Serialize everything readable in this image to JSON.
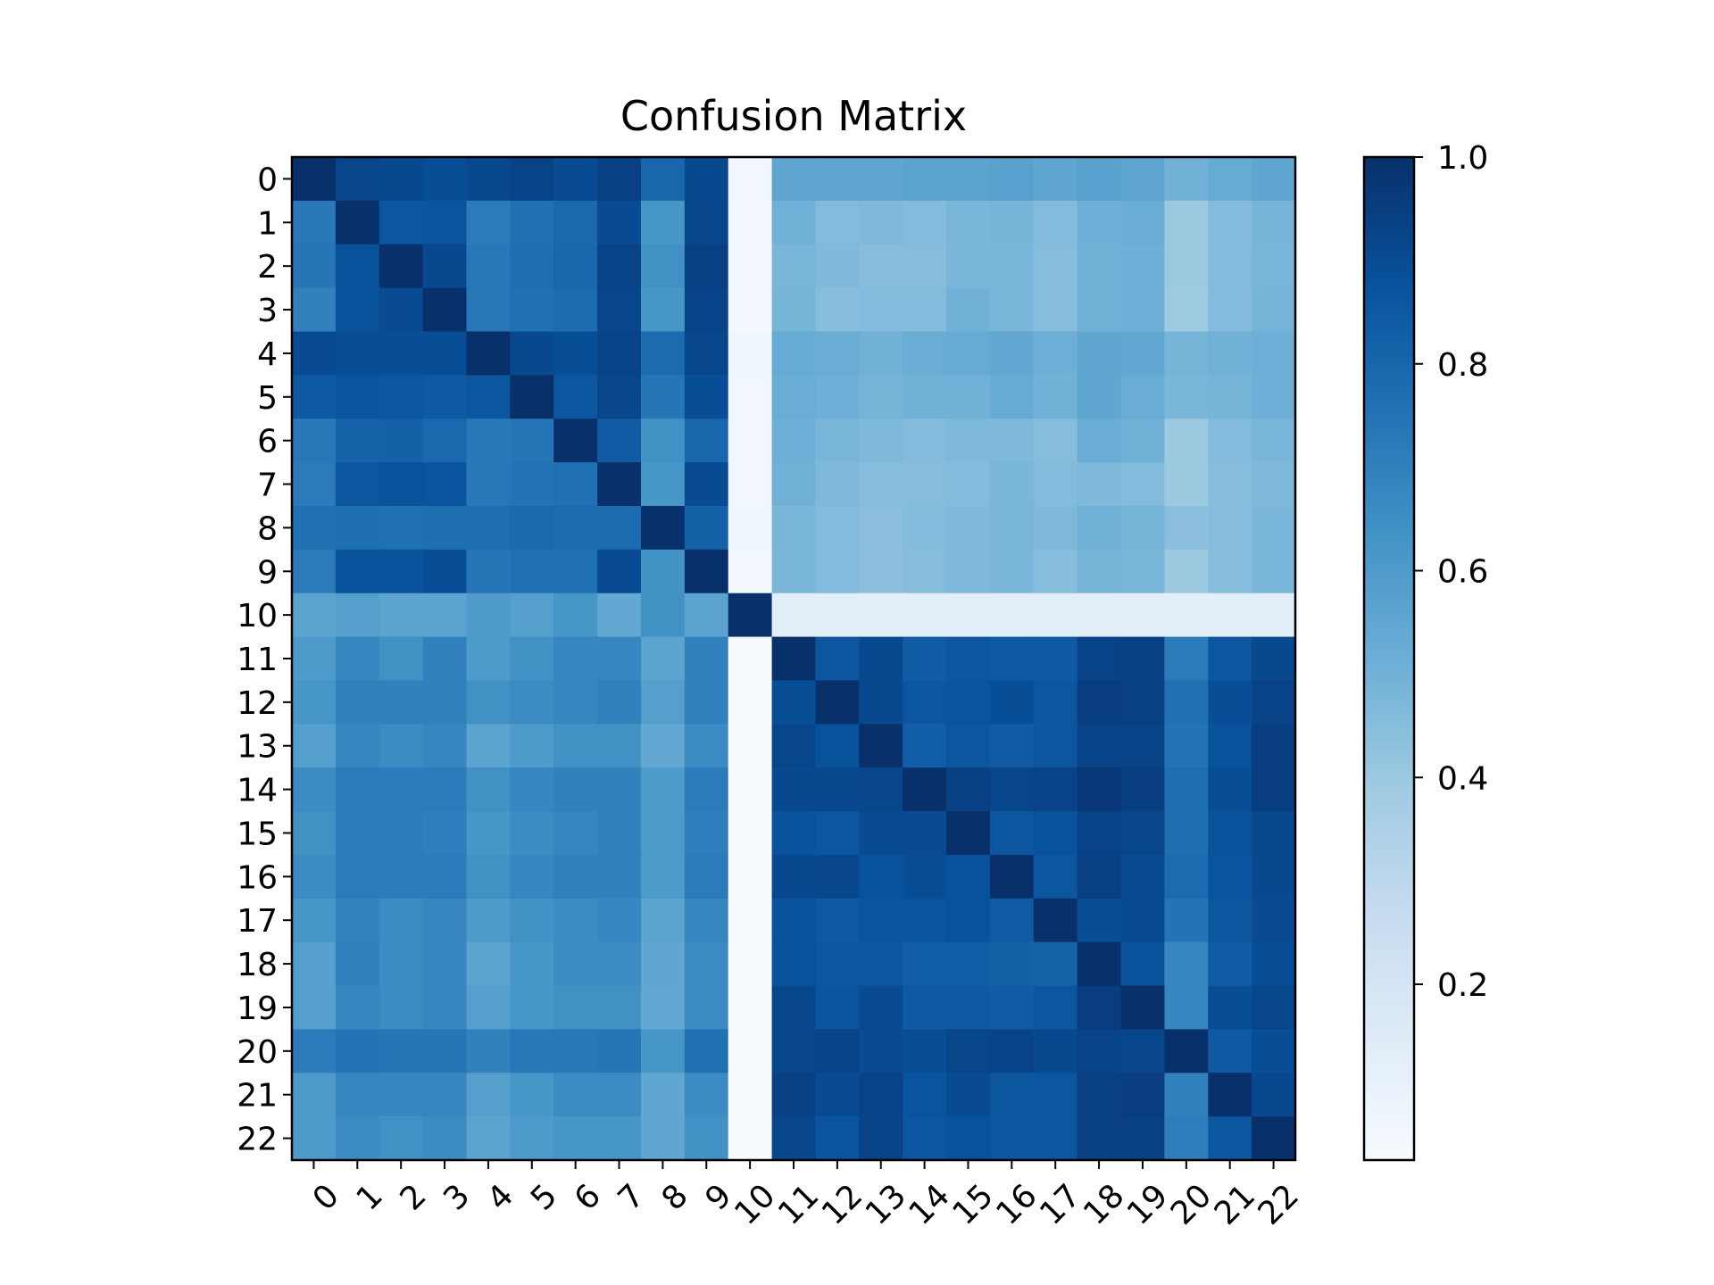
{
  "chart_data": {
    "type": "heatmap",
    "title": "Confusion Matrix",
    "colormap": "Blues",
    "xlabel": "",
    "ylabel": "",
    "x_tick_labels": [
      "0",
      "1",
      "2",
      "3",
      "4",
      "5",
      "6",
      "7",
      "8",
      "9",
      "10",
      "11",
      "12",
      "13",
      "14",
      "15",
      "16",
      "17",
      "18",
      "19",
      "20",
      "21",
      "22"
    ],
    "y_tick_labels": [
      "0",
      "1",
      "2",
      "3",
      "4",
      "5",
      "6",
      "7",
      "8",
      "9",
      "10",
      "11",
      "12",
      "13",
      "14",
      "15",
      "16",
      "17",
      "18",
      "19",
      "20",
      "21",
      "22"
    ],
    "colorbar": {
      "range": [
        0.03,
        1.0
      ],
      "ticks": [
        0.2,
        0.4,
        0.6,
        0.8,
        1.0
      ],
      "tick_labels": [
        "0.2",
        "0.4",
        "0.6",
        "0.8",
        "1.0"
      ]
    },
    "matrix": [
      [
        1.0,
        0.92,
        0.91,
        0.89,
        0.91,
        0.93,
        0.9,
        0.94,
        0.8,
        0.91,
        0.06,
        0.55,
        0.55,
        0.55,
        0.56,
        0.56,
        0.57,
        0.55,
        0.57,
        0.55,
        0.5,
        0.53,
        0.55
      ],
      [
        0.73,
        1.0,
        0.86,
        0.87,
        0.72,
        0.76,
        0.79,
        0.9,
        0.62,
        0.92,
        0.05,
        0.5,
        0.46,
        0.47,
        0.46,
        0.48,
        0.49,
        0.46,
        0.51,
        0.52,
        0.4,
        0.46,
        0.49
      ],
      [
        0.74,
        0.88,
        1.0,
        0.91,
        0.73,
        0.77,
        0.8,
        0.93,
        0.64,
        0.94,
        0.05,
        0.48,
        0.47,
        0.45,
        0.45,
        0.48,
        0.48,
        0.45,
        0.5,
        0.51,
        0.4,
        0.46,
        0.48
      ],
      [
        0.7,
        0.88,
        0.9,
        1.0,
        0.73,
        0.76,
        0.78,
        0.92,
        0.62,
        0.93,
        0.05,
        0.49,
        0.45,
        0.46,
        0.46,
        0.5,
        0.48,
        0.45,
        0.5,
        0.51,
        0.39,
        0.46,
        0.49
      ],
      [
        0.9,
        0.89,
        0.89,
        0.89,
        1.0,
        0.91,
        0.89,
        0.93,
        0.78,
        0.92,
        0.07,
        0.53,
        0.52,
        0.5,
        0.52,
        0.53,
        0.54,
        0.51,
        0.55,
        0.54,
        0.49,
        0.5,
        0.51
      ],
      [
        0.85,
        0.87,
        0.86,
        0.85,
        0.86,
        1.0,
        0.86,
        0.92,
        0.74,
        0.89,
        0.06,
        0.52,
        0.51,
        0.49,
        0.5,
        0.5,
        0.53,
        0.5,
        0.55,
        0.52,
        0.48,
        0.49,
        0.51
      ],
      [
        0.73,
        0.81,
        0.82,
        0.79,
        0.73,
        0.74,
        1.0,
        0.84,
        0.64,
        0.8,
        0.06,
        0.51,
        0.48,
        0.47,
        0.46,
        0.47,
        0.47,
        0.45,
        0.52,
        0.5,
        0.4,
        0.46,
        0.48
      ],
      [
        0.72,
        0.86,
        0.88,
        0.87,
        0.73,
        0.75,
        0.76,
        1.0,
        0.62,
        0.9,
        0.06,
        0.5,
        0.47,
        0.45,
        0.45,
        0.46,
        0.48,
        0.46,
        0.47,
        0.46,
        0.4,
        0.45,
        0.47
      ],
      [
        0.76,
        0.77,
        0.76,
        0.77,
        0.77,
        0.79,
        0.78,
        0.78,
        1.0,
        0.82,
        0.07,
        0.48,
        0.46,
        0.44,
        0.46,
        0.47,
        0.48,
        0.47,
        0.5,
        0.49,
        0.44,
        0.45,
        0.48
      ],
      [
        0.72,
        0.88,
        0.88,
        0.89,
        0.74,
        0.76,
        0.76,
        0.9,
        0.63,
        1.0,
        0.05,
        0.48,
        0.46,
        0.44,
        0.45,
        0.47,
        0.48,
        0.45,
        0.49,
        0.48,
        0.4,
        0.45,
        0.48
      ],
      [
        0.56,
        0.58,
        0.56,
        0.56,
        0.6,
        0.58,
        0.62,
        0.54,
        0.64,
        0.56,
        1.0,
        0.13,
        0.13,
        0.13,
        0.13,
        0.13,
        0.13,
        0.13,
        0.13,
        0.13,
        0.13,
        0.13,
        0.13
      ],
      [
        0.6,
        0.68,
        0.64,
        0.7,
        0.6,
        0.64,
        0.68,
        0.68,
        0.56,
        0.7,
        0.02,
        1.0,
        0.86,
        0.91,
        0.84,
        0.86,
        0.85,
        0.85,
        0.93,
        0.94,
        0.72,
        0.86,
        0.91
      ],
      [
        0.62,
        0.7,
        0.7,
        0.7,
        0.64,
        0.66,
        0.68,
        0.7,
        0.58,
        0.7,
        0.02,
        0.89,
        1.0,
        0.91,
        0.86,
        0.87,
        0.89,
        0.86,
        0.95,
        0.94,
        0.76,
        0.89,
        0.93
      ],
      [
        0.58,
        0.68,
        0.66,
        0.68,
        0.56,
        0.6,
        0.64,
        0.64,
        0.54,
        0.66,
        0.02,
        0.92,
        0.88,
        1.0,
        0.83,
        0.86,
        0.84,
        0.86,
        0.93,
        0.93,
        0.75,
        0.88,
        0.95
      ],
      [
        0.66,
        0.72,
        0.72,
        0.72,
        0.64,
        0.68,
        0.7,
        0.7,
        0.6,
        0.72,
        0.02,
        0.91,
        0.91,
        0.92,
        1.0,
        0.94,
        0.92,
        0.93,
        0.97,
        0.95,
        0.77,
        0.89,
        0.95
      ],
      [
        0.64,
        0.72,
        0.72,
        0.71,
        0.62,
        0.66,
        0.68,
        0.7,
        0.6,
        0.71,
        0.02,
        0.88,
        0.86,
        0.9,
        0.9,
        1.0,
        0.86,
        0.88,
        0.93,
        0.92,
        0.77,
        0.88,
        0.91
      ],
      [
        0.66,
        0.72,
        0.72,
        0.72,
        0.64,
        0.68,
        0.7,
        0.7,
        0.6,
        0.72,
        0.02,
        0.91,
        0.92,
        0.88,
        0.89,
        0.88,
        1.0,
        0.86,
        0.94,
        0.9,
        0.78,
        0.87,
        0.91
      ],
      [
        0.62,
        0.69,
        0.66,
        0.68,
        0.6,
        0.64,
        0.66,
        0.68,
        0.56,
        0.68,
        0.02,
        0.88,
        0.85,
        0.87,
        0.87,
        0.88,
        0.84,
        1.0,
        0.89,
        0.9,
        0.75,
        0.86,
        0.9
      ],
      [
        0.58,
        0.7,
        0.66,
        0.68,
        0.56,
        0.62,
        0.66,
        0.66,
        0.55,
        0.66,
        0.02,
        0.88,
        0.86,
        0.86,
        0.83,
        0.83,
        0.82,
        0.81,
        1.0,
        0.88,
        0.68,
        0.84,
        0.89
      ],
      [
        0.58,
        0.68,
        0.66,
        0.68,
        0.58,
        0.62,
        0.64,
        0.64,
        0.54,
        0.66,
        0.02,
        0.92,
        0.87,
        0.9,
        0.85,
        0.85,
        0.84,
        0.86,
        0.95,
        1.0,
        0.68,
        0.89,
        0.92
      ],
      [
        0.72,
        0.75,
        0.74,
        0.74,
        0.7,
        0.73,
        0.73,
        0.74,
        0.62,
        0.76,
        0.02,
        0.92,
        0.93,
        0.9,
        0.89,
        0.92,
        0.93,
        0.91,
        0.93,
        0.92,
        1.0,
        0.85,
        0.89
      ],
      [
        0.6,
        0.68,
        0.68,
        0.68,
        0.58,
        0.62,
        0.66,
        0.66,
        0.55,
        0.66,
        0.02,
        0.94,
        0.9,
        0.93,
        0.87,
        0.9,
        0.86,
        0.86,
        0.94,
        0.95,
        0.7,
        1.0,
        0.91
      ],
      [
        0.6,
        0.66,
        0.64,
        0.66,
        0.56,
        0.6,
        0.62,
        0.62,
        0.55,
        0.64,
        0.02,
        0.92,
        0.87,
        0.93,
        0.86,
        0.88,
        0.86,
        0.86,
        0.94,
        0.94,
        0.71,
        0.86,
        1.0
      ]
    ]
  }
}
